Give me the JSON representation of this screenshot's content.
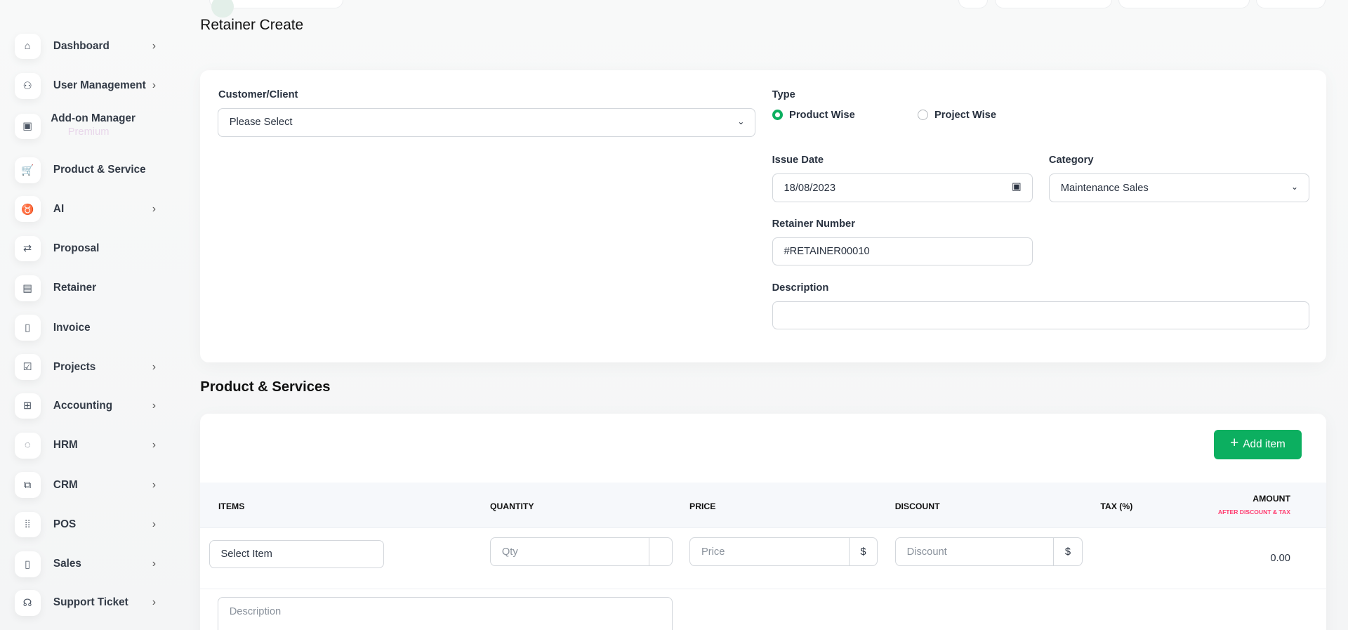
{
  "sidebar": {
    "items": [
      {
        "label": "Dashboard",
        "icon": "home-icon",
        "chevron": true
      },
      {
        "label": "User Management",
        "icon": "users-icon",
        "chevron": true
      },
      {
        "label": "Add-on Manager",
        "icon": "apps-icon",
        "chevron": false,
        "badge": "Premium"
      },
      {
        "label": "Product & Service",
        "icon": "cart-icon",
        "chevron": false
      },
      {
        "label": "AI",
        "icon": "ai-icon",
        "chevron": true
      },
      {
        "label": "Proposal",
        "icon": "proposal-icon",
        "chevron": false
      },
      {
        "label": "Retainer",
        "icon": "save-icon",
        "chevron": false
      },
      {
        "label": "Invoice",
        "icon": "file-icon",
        "chevron": false
      },
      {
        "label": "Projects",
        "icon": "checkbox-icon",
        "chevron": true
      },
      {
        "label": "Accounting",
        "icon": "grid-plus-icon",
        "chevron": true
      },
      {
        "label": "HRM",
        "icon": "hrm-icon",
        "chevron": true
      },
      {
        "label": "CRM",
        "icon": "crm-icon",
        "chevron": true
      },
      {
        "label": "POS",
        "icon": "dots-grid-icon",
        "chevron": true
      },
      {
        "label": "Sales",
        "icon": "file-icon",
        "chevron": true
      },
      {
        "label": "Support Ticket",
        "icon": "headset-icon",
        "chevron": true
      }
    ]
  },
  "page": {
    "title": "Retainer Create",
    "section_title": "Product & Services"
  },
  "form": {
    "customer_label": "Customer/Client",
    "customer_value": "Please Select",
    "type_label": "Type",
    "type_options": [
      "Product Wise",
      "Project Wise"
    ],
    "type_selected": "Product Wise",
    "issue_date_label": "Issue Date",
    "issue_date_value": "18/08/2023",
    "category_label": "Category",
    "category_value": "Maintenance Sales",
    "number_label": "Retainer Number",
    "number_value": "#RETAINER00010",
    "description_label": "Description",
    "description_value": ""
  },
  "items": {
    "add_button": "Add item",
    "headers": {
      "items": "ITEMS",
      "quantity": "QUANTITY",
      "price": "PRICE",
      "discount": "DISCOUNT",
      "tax": "TAX (%)",
      "amount": "AMOUNT",
      "amount_sub": "AFTER DISCOUNT & TAX"
    },
    "row": {
      "item_value": "Select Item",
      "qty_placeholder": "Qty",
      "price_placeholder": "Price",
      "price_addon": "$",
      "discount_placeholder": "Discount",
      "discount_addon": "$",
      "amount": "0.00",
      "description_placeholder": "Description"
    }
  },
  "colors": {
    "accent": "#0caf60",
    "subheader_pink": "#ff3a6e"
  }
}
